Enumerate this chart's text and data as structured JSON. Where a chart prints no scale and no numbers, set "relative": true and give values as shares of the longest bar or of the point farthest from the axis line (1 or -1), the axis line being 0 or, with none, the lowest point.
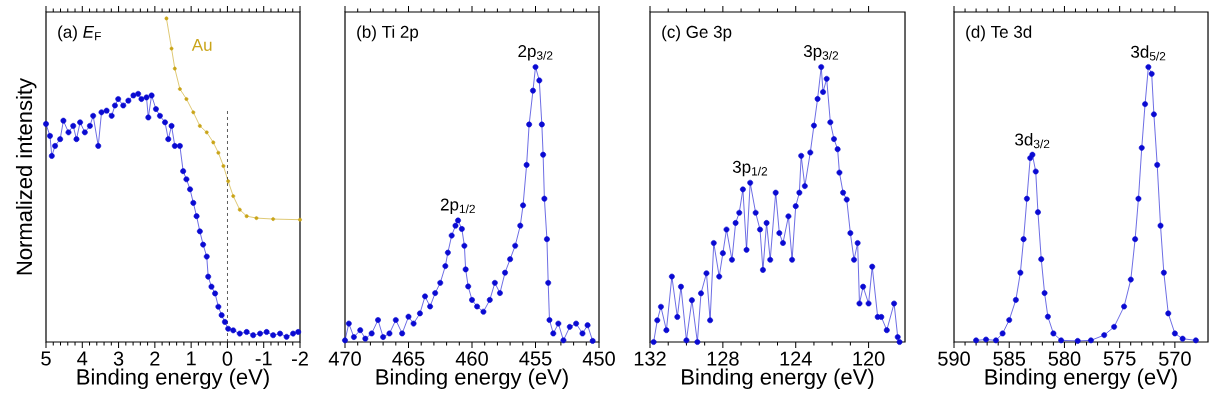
{
  "chart_data": [
    {
      "type": "line",
      "relative": true,
      "marker": "circle",
      "line_style": "solid",
      "xlabel": "Binding energy (eV)",
      "ylabel": "Normalized intensity",
      "xlim": [
        5,
        -2
      ],
      "xticks": [
        5,
        4,
        3,
        2,
        1,
        0,
        -1,
        -2
      ],
      "annotations": [
        "(a) *E*$_{F}$"
      ],
      "ref_lines": [
        {
          "axis": "x",
          "value": 0,
          "color": "#000000",
          "line_style": "dashed"
        }
      ],
      "series": [
        {
          "color": "#0a0ad2",
          "x": [
            5.0,
            4.89,
            4.84,
            4.75,
            4.61,
            4.52,
            4.38,
            4.25,
            4.16,
            4.06,
            3.93,
            3.79,
            3.7,
            3.56,
            3.47,
            3.33,
            3.19,
            3.1,
            3.01,
            2.87,
            2.73,
            2.59,
            2.46,
            2.37,
            2.23,
            2.18,
            2.09,
            1.97,
            1.86,
            1.72,
            1.63,
            1.54,
            1.45,
            1.31,
            1.22,
            1.13,
            1.03,
            0.94,
            0.85,
            0.76,
            0.67,
            0.57,
            0.53,
            0.44,
            0.34,
            0.25,
            0.16,
            0.07,
            -0.02,
            -0.16,
            -0.34,
            -0.53,
            -0.71,
            -0.9,
            -1.08,
            -1.26,
            -1.45,
            -1.63,
            -1.81,
            -1.95
          ],
          "values": [
            0.674,
            0.637,
            0.575,
            0.606,
            0.627,
            0.684,
            0.648,
            0.668,
            0.627,
            0.679,
            0.648,
            0.668,
            0.699,
            0.606,
            0.71,
            0.715,
            0.699,
            0.731,
            0.751,
            0.731,
            0.746,
            0.762,
            0.767,
            0.751,
            0.756,
            0.694,
            0.762,
            0.72,
            0.699,
            0.679,
            0.627,
            0.668,
            0.606,
            0.606,
            0.528,
            0.503,
            0.472,
            0.43,
            0.389,
            0.342,
            0.301,
            0.264,
            0.202,
            0.171,
            0.15,
            0.109,
            0.083,
            0.062,
            0.041,
            0.036,
            0.026,
            0.031,
            0.021,
            0.026,
            0.031,
            0.021,
            0.026,
            0.016,
            0.026,
            0.031
          ]
        },
        {
          "name": "Au",
          "color": "#c9a418",
          "x": [
            1.68,
            1.54,
            1.45,
            1.31,
            1.13,
            0.94,
            0.76,
            0.57,
            0.39,
            0.25,
            0.11,
            -0.02,
            -0.16,
            -0.34,
            -0.53,
            -0.8,
            -1.26,
            -2.0
          ],
          "values": [
            1.0,
            0.907,
            0.845,
            0.782,
            0.751,
            0.71,
            0.668,
            0.648,
            0.617,
            0.585,
            0.544,
            0.497,
            0.451,
            0.409,
            0.389,
            0.383,
            0.38,
            0.378
          ]
        }
      ]
    },
    {
      "type": "line",
      "relative": true,
      "marker": "circle",
      "line_style": "solid",
      "xlabel": "Binding energy (eV)",
      "xlim": [
        470,
        450
      ],
      "xticks": [
        470,
        465,
        460,
        455,
        450
      ],
      "annotations": [
        "(b) Ti 2p",
        {
          "text": "2p$_{1/2}$",
          "x": 461.1,
          "y": 0.442
        },
        {
          "text": "2p$_{3/2}$",
          "x": 455.0,
          "y": 1.0
        }
      ],
      "series": [
        {
          "color": "#0a0ad2",
          "x": [
            470.0,
            469.7,
            469.3,
            468.8,
            468.4,
            467.9,
            467.4,
            467.0,
            466.5,
            466.0,
            465.5,
            465.0,
            464.6,
            464.1,
            463.7,
            463.3,
            462.9,
            462.5,
            462.1,
            461.9,
            461.6,
            461.3,
            461.1,
            460.8,
            460.6,
            460.5,
            460.3,
            460.0,
            459.6,
            459.1,
            458.6,
            458.2,
            457.8,
            457.4,
            457.0,
            456.6,
            456.2,
            455.98,
            455.7,
            455.5,
            455.2,
            455.0,
            454.7,
            454.5,
            454.4,
            454.3,
            454.1,
            454.0,
            453.9,
            453.6,
            453.2,
            452.8,
            452.3,
            451.8,
            451.3,
            450.9,
            450.5
          ],
          "values": [
            0.006,
            0.067,
            0.018,
            0.043,
            0.012,
            0.031,
            0.08,
            0.018,
            0.031,
            0.08,
            0.031,
            0.092,
            0.067,
            0.104,
            0.166,
            0.129,
            0.178,
            0.215,
            0.276,
            0.325,
            0.387,
            0.423,
            0.442,
            0.411,
            0.35,
            0.264,
            0.202,
            0.153,
            0.129,
            0.11,
            0.153,
            0.215,
            0.178,
            0.252,
            0.301,
            0.35,
            0.423,
            0.497,
            0.644,
            0.791,
            0.914,
            1.0,
            0.951,
            0.791,
            0.681,
            0.521,
            0.374,
            0.215,
            0.08,
            0.031,
            0.067,
            0.006,
            0.055,
            0.067,
            0.031,
            0.061,
            0.004
          ]
        }
      ]
    },
    {
      "type": "line",
      "relative": true,
      "marker": "circle",
      "line_style": "solid",
      "xlabel": "Binding energy (eV)",
      "xlim": [
        132,
        118
      ],
      "xticks": [
        132,
        128,
        124,
        120
      ],
      "annotations": [
        "(c) Ge 3p",
        {
          "text": "3p$_{1/2}$",
          "x": 126.5,
          "y": 0.579
        },
        {
          "text": "3p$_{3/2}$",
          "x": 122.6,
          "y": 1.0
        }
      ],
      "series": [
        {
          "color": "#0a0ad2",
          "x": [
            131.8,
            131.6,
            131.4,
            131.1,
            130.8,
            130.5,
            130.3,
            130.0,
            129.7,
            129.4,
            129.2,
            128.9,
            128.7,
            128.5,
            128.2,
            128.0,
            127.8,
            127.5,
            127.3,
            127.1,
            126.9,
            126.7,
            126.5,
            126.2,
            125.96,
            125.8,
            125.6,
            125.4,
            125.1,
            124.9,
            124.7,
            124.4,
            124.2,
            124.0,
            123.8,
            123.7,
            123.5,
            123.2,
            123.0,
            122.8,
            122.6,
            122.5,
            122.3,
            122.1,
            121.9,
            121.7,
            121.6,
            121.4,
            121.2,
            121.0,
            120.8,
            120.6,
            120.5,
            120.3,
            120.0,
            119.8,
            119.5,
            119.3,
            119.0,
            118.6,
            118.4,
            118.3
          ],
          "values": [
            0,
            0.079,
            0.128,
            0.043,
            0.238,
            0.091,
            0.201,
            0.006,
            0.152,
            0,
            0.177,
            0.25,
            0.079,
            0.36,
            0.238,
            0.323,
            0.409,
            0.299,
            0.433,
            0.47,
            0.555,
            0.335,
            0.579,
            0.47,
            0.409,
            0.262,
            0.433,
            0.299,
            0.543,
            0.396,
            0.36,
            0.457,
            0.299,
            0.494,
            0.543,
            0.677,
            0.567,
            0.689,
            0.787,
            0.884,
            1.0,
            0.909,
            0.957,
            0.799,
            0.738,
            0.701,
            0.616,
            0.543,
            0.518,
            0.396,
            0.299,
            0.36,
            0.14,
            0.201,
            0.14,
            0.274,
            0.091,
            0.091,
            0.043,
            0.14,
            0.018,
            0
          ]
        }
      ]
    },
    {
      "type": "line",
      "relative": true,
      "marker": "circle",
      "line_style": "solid",
      "xlabel": "Binding energy (eV)",
      "xlim": [
        590,
        567
      ],
      "xticks": [
        590,
        585,
        580,
        575,
        570
      ],
      "annotations": [
        "(d) Te 3d",
        {
          "text": "3d$_{3/2}$",
          "x": 582.9,
          "y": 0.681
        },
        {
          "text": "3d$_{5/2}$",
          "x": 572.4,
          "y": 1.0
        }
      ],
      "series": [
        {
          "color": "#0a0ad2",
          "x": [
            588.0,
            587.1,
            586.2,
            585.6,
            585.0,
            584.4,
            583.99,
            583.7,
            583.4,
            583.1,
            582.9,
            582.6,
            582.4,
            582.1,
            581.8,
            581.5,
            581.0,
            580.3,
            578.8,
            577.6,
            576.4,
            575.5,
            574.6,
            573.99,
            573.6,
            573.3,
            573.0,
            572.7,
            572.4,
            572.1,
            571.9,
            571.6,
            571.3,
            571.0,
            570.6,
            570.0,
            569.3,
            568.1
          ],
          "values": [
            0.006,
            0.009,
            0.006,
            0.031,
            0.08,
            0.153,
            0.252,
            0.374,
            0.521,
            0.669,
            0.681,
            0.62,
            0.472,
            0.301,
            0.178,
            0.092,
            0.031,
            0.006,
            0.004,
            0.006,
            0.025,
            0.055,
            0.129,
            0.227,
            0.374,
            0.521,
            0.706,
            0.865,
            1.0,
            0.975,
            0.828,
            0.644,
            0.423,
            0.252,
            0.104,
            0.031,
            0.012,
            0.006
          ]
        }
      ]
    }
  ]
}
